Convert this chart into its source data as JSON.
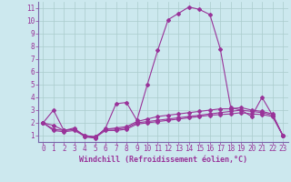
{
  "xlabel": "Windchill (Refroidissement éolien,°C)",
  "ylabel": "",
  "background_color": "#cce8ee",
  "grid_color": "#aacccc",
  "line_color": "#993399",
  "xlim": [
    -0.5,
    23.5
  ],
  "ylim": [
    0.5,
    11.5
  ],
  "xticks": [
    0,
    1,
    2,
    3,
    4,
    5,
    6,
    7,
    8,
    9,
    10,
    11,
    12,
    13,
    14,
    15,
    16,
    17,
    18,
    19,
    20,
    21,
    22,
    23
  ],
  "yticks": [
    1,
    2,
    3,
    4,
    5,
    6,
    7,
    8,
    9,
    10,
    11
  ],
  "series": [
    [
      2.0,
      3.0,
      1.4,
      1.6,
      0.9,
      0.8,
      1.6,
      3.5,
      3.6,
      2.2,
      5.0,
      7.7,
      10.1,
      10.6,
      11.1,
      10.9,
      10.5,
      7.8,
      3.2,
      3.0,
      2.5,
      4.0,
      2.6,
      1.0
    ],
    [
      2.0,
      1.8,
      1.4,
      1.5,
      1.0,
      0.9,
      1.5,
      1.6,
      1.7,
      2.1,
      2.3,
      2.5,
      2.6,
      2.7,
      2.8,
      2.9,
      3.0,
      3.1,
      3.1,
      3.2,
      3.0,
      2.9,
      2.7,
      1.0
    ],
    [
      2.0,
      1.5,
      1.4,
      1.5,
      1.0,
      0.9,
      1.5,
      1.5,
      1.6,
      2.0,
      2.1,
      2.2,
      2.3,
      2.4,
      2.5,
      2.6,
      2.7,
      2.8,
      2.9,
      3.0,
      2.9,
      2.8,
      2.6,
      1.0
    ],
    [
      2.0,
      1.4,
      1.3,
      1.4,
      0.95,
      0.85,
      1.4,
      1.4,
      1.5,
      1.9,
      2.0,
      2.1,
      2.2,
      2.3,
      2.4,
      2.5,
      2.6,
      2.65,
      2.7,
      2.8,
      2.7,
      2.65,
      2.5,
      1.0
    ]
  ],
  "spine_color": "#7766aa",
  "xlabel_fontsize": 6.0,
  "tick_fontsize": 5.5
}
